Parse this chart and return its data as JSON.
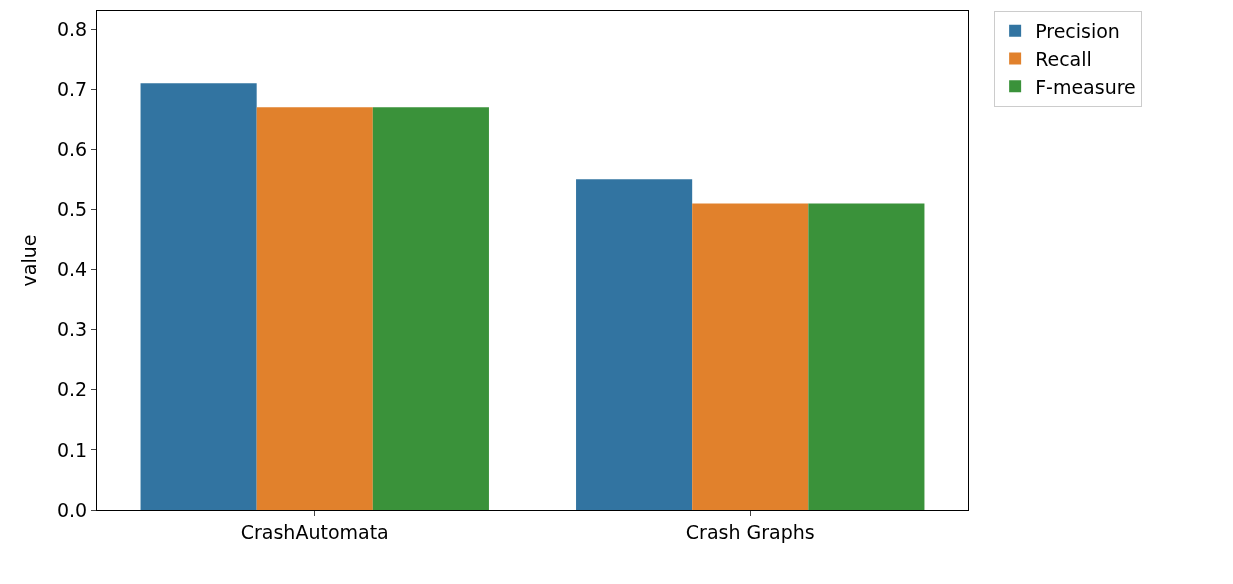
{
  "chart_data": {
    "type": "bar",
    "ylabel": "value",
    "categories": [
      "CrashAutomata",
      "Crash Graphs"
    ],
    "series": [
      {
        "name": "Precision",
        "color": "#3274a1",
        "values": [
          0.71,
          0.55
        ]
      },
      {
        "name": "Recall",
        "color": "#e1812c",
        "values": [
          0.67,
          0.51
        ]
      },
      {
        "name": "F-measure",
        "color": "#3a923a",
        "values": [
          0.67,
          0.51
        ]
      }
    ],
    "ylim": [
      0,
      0.83
    ],
    "yticks": [
      {
        "value": 0,
        "label": "0.0"
      },
      0.1,
      0.2,
      0.3,
      0.4,
      0.5,
      0.6,
      0.7,
      0.8
    ],
    "legend": "top right"
  }
}
